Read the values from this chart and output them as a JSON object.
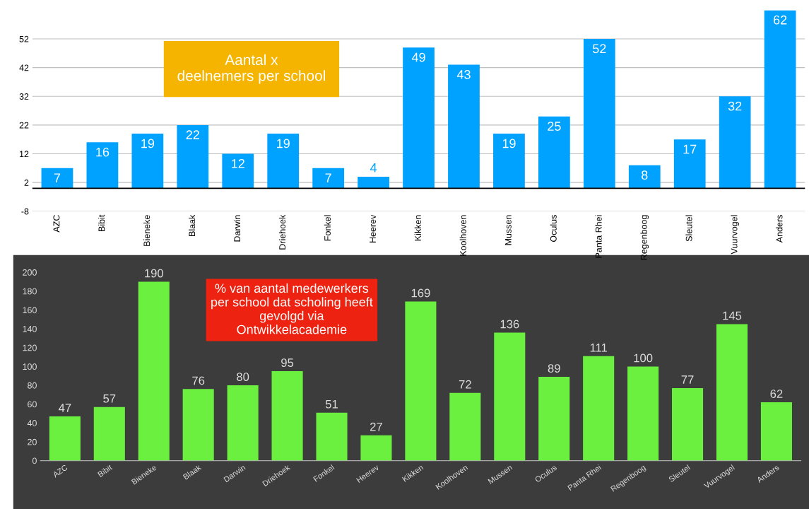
{
  "chart_data": [
    {
      "type": "bar",
      "categories": [
        "AZC",
        "Bibit",
        "Bieneke",
        "Blaak",
        "Darwin",
        "Driehoek",
        "Fonkel",
        "Heerev",
        "Kikken",
        "Koolhoven",
        "Mussen",
        "Oculus",
        "Panta Rhei",
        "Regenboog",
        "Sleutel",
        "Vuurvogel",
        "Anders"
      ],
      "values": [
        7,
        16,
        19,
        22,
        12,
        19,
        7,
        4,
        49,
        43,
        19,
        25,
        52,
        8,
        17,
        32,
        62
      ],
      "color": "#00a2ff",
      "ylim": [
        -8,
        62
      ],
      "yticks": [
        -8,
        2,
        12,
        22,
        32,
        42,
        52
      ],
      "grid": "y",
      "data_labels": true,
      "annotations": [
        "Aantal x\ndeelnemers per school"
      ]
    },
    {
      "type": "bar",
      "categories": [
        "AZC",
        "Bibit",
        "Bieneke",
        "Blaak",
        "Darwin",
        "Driehoek",
        "Fonkel",
        "Heerev",
        "Kikken",
        "Koolhoven",
        "Mussen",
        "Oculus",
        "Panta Rhei",
        "Regenboog",
        "Sleutel",
        "Vuurvogel",
        "Anders"
      ],
      "values": [
        47,
        57,
        190,
        76,
        80,
        95,
        51,
        27,
        169,
        72,
        136,
        89,
        111,
        100,
        77,
        145,
        62
      ],
      "color": "#6cf040",
      "ylim": [
        0,
        200
      ],
      "yticks": [
        0,
        20,
        40,
        60,
        80,
        100,
        120,
        140,
        160,
        180,
        200
      ],
      "grid": false,
      "data_labels": true,
      "annotations": [
        "% van aantal medewerkers\nper school dat scholing heeft\ngevolgd via\nOntwikkelacademie"
      ]
    }
  ]
}
